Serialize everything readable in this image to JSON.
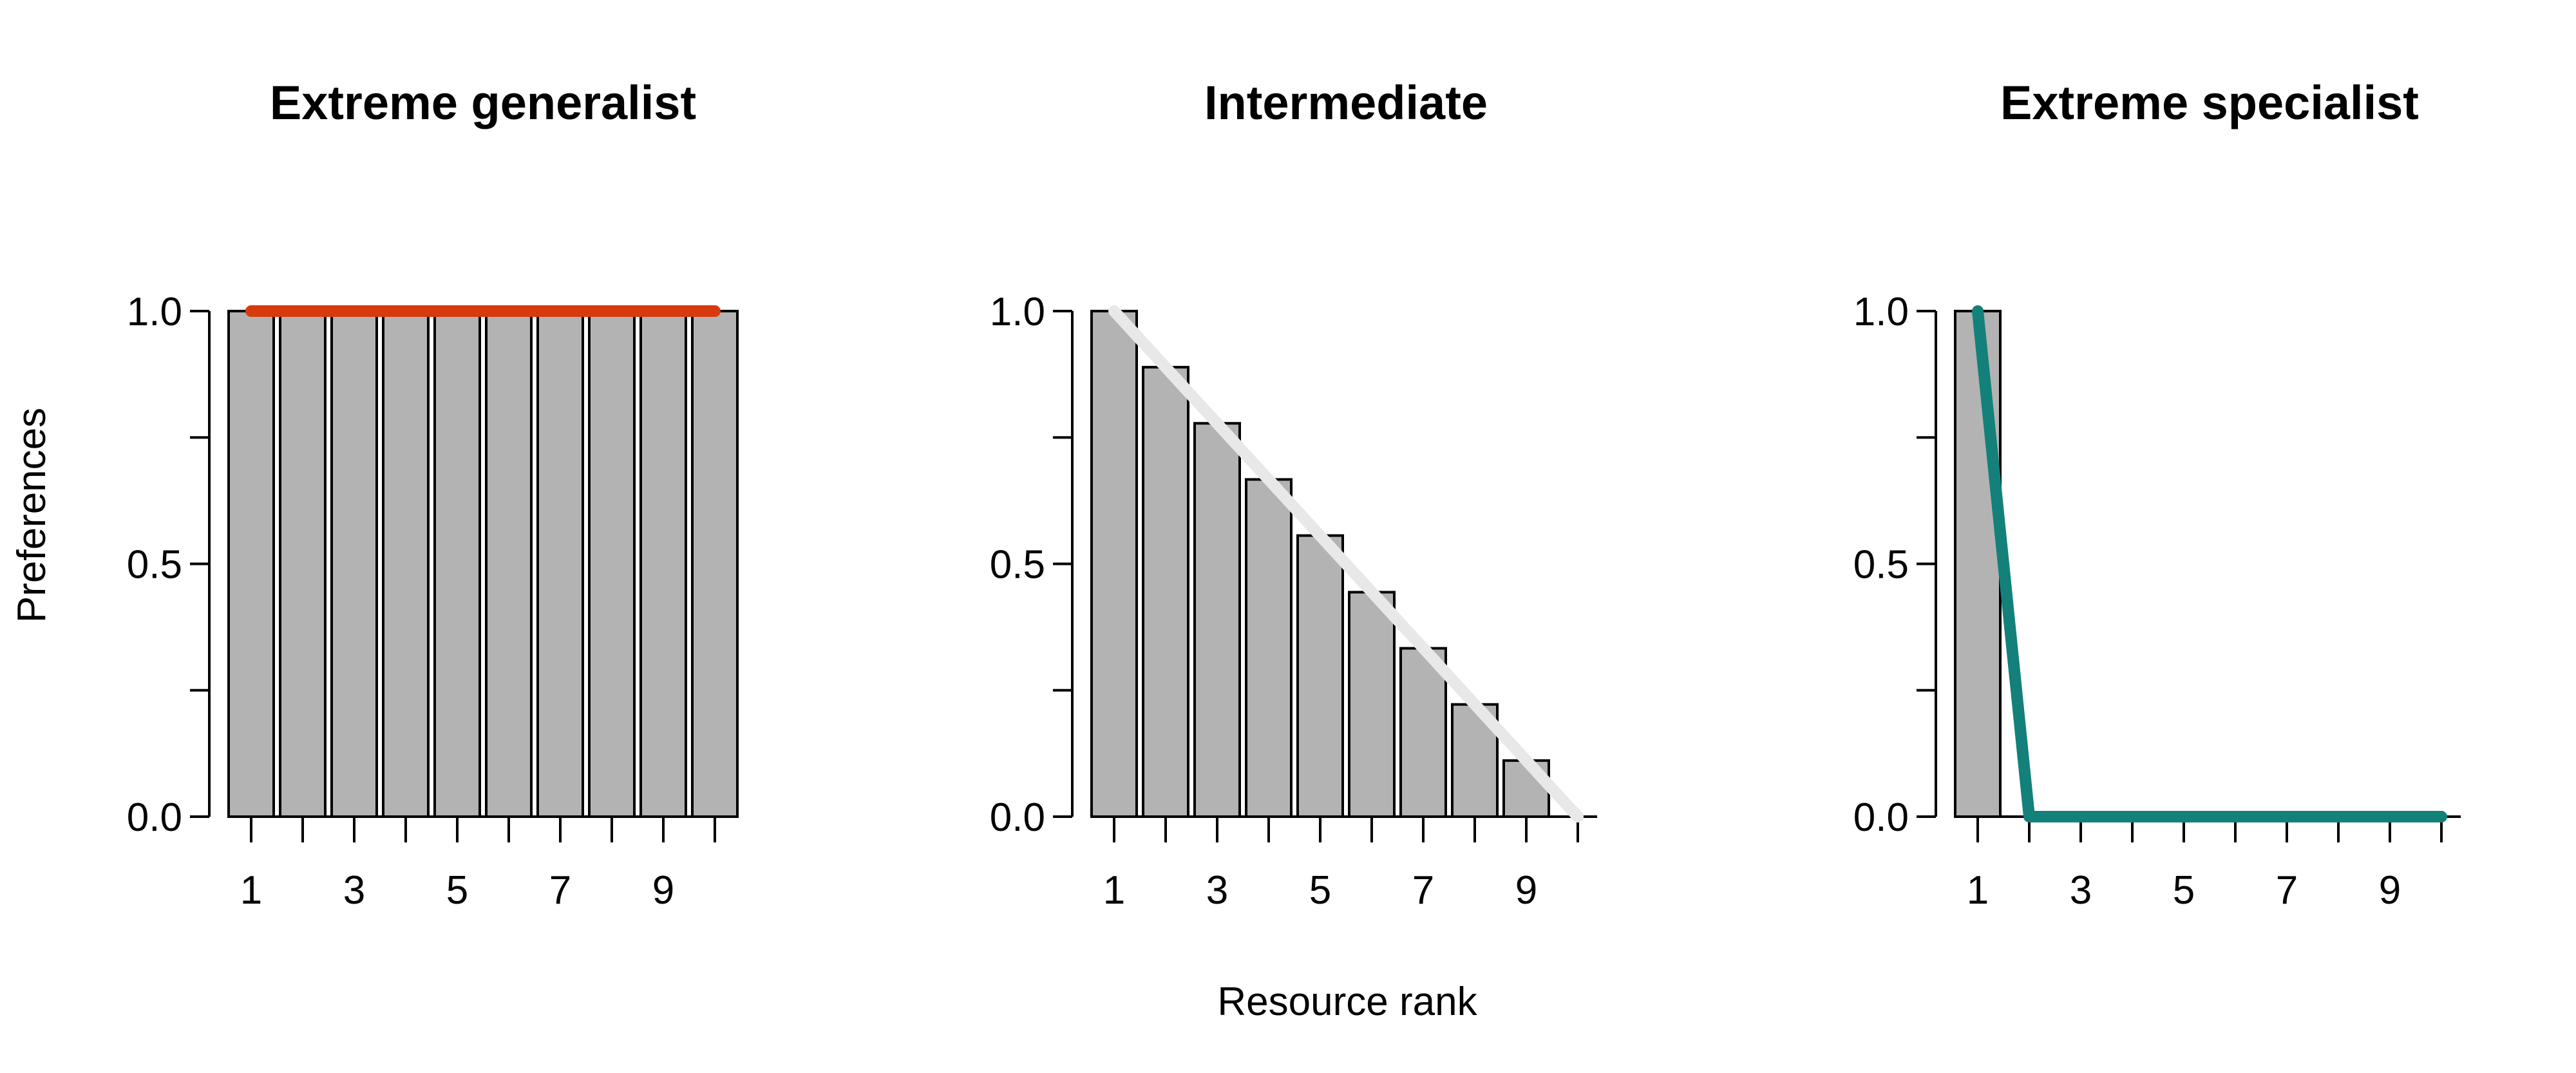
{
  "ylabel": "Preferences",
  "xlabel": "Resource rank",
  "colors": {
    "bar_fill": "#b3b3b3",
    "bar_edge": "#000000",
    "axis": "#000000"
  },
  "chart_data": [
    {
      "type": "bar",
      "title": "Extreme generalist",
      "categories": [
        1,
        2,
        3,
        4,
        5,
        6,
        7,
        8,
        9,
        10
      ],
      "values": [
        1.0,
        1.0,
        1.0,
        1.0,
        1.0,
        1.0,
        1.0,
        1.0,
        1.0,
        1.0
      ],
      "line": {
        "x": [
          1,
          2,
          3,
          4,
          5,
          6,
          7,
          8,
          9,
          10
        ],
        "y": [
          1.0,
          1.0,
          1.0,
          1.0,
          1.0,
          1.0,
          1.0,
          1.0,
          1.0,
          1.0
        ],
        "color": "#d63a0e"
      },
      "ylim": [
        0,
        1
      ],
      "yticks": [
        0.0,
        0.25,
        0.5,
        0.75,
        1.0
      ],
      "ytick_labels": [
        "0.0",
        "",
        "0.5",
        "",
        "1.0"
      ],
      "xticks": [
        1,
        2,
        3,
        4,
        5,
        6,
        7,
        8,
        9,
        10
      ],
      "xtick_labels": [
        "1",
        "",
        "3",
        "",
        "5",
        "",
        "7",
        "",
        "9",
        ""
      ]
    },
    {
      "type": "bar",
      "title": "Intermediate",
      "categories": [
        1,
        2,
        3,
        4,
        5,
        6,
        7,
        8,
        9,
        10
      ],
      "values": [
        1.0,
        0.889,
        0.778,
        0.667,
        0.556,
        0.444,
        0.333,
        0.222,
        0.111,
        0.0
      ],
      "line": {
        "x": [
          1,
          10
        ],
        "y": [
          1.0,
          0.0
        ],
        "color": "#e8e8e8"
      },
      "ylim": [
        0,
        1
      ],
      "yticks": [
        0.0,
        0.25,
        0.5,
        0.75,
        1.0
      ],
      "ytick_labels": [
        "0.0",
        "",
        "0.5",
        "",
        "1.0"
      ],
      "xticks": [
        1,
        2,
        3,
        4,
        5,
        6,
        7,
        8,
        9,
        10
      ],
      "xtick_labels": [
        "1",
        "",
        "3",
        "",
        "5",
        "",
        "7",
        "",
        "9",
        ""
      ]
    },
    {
      "type": "bar",
      "title": "Extreme specialist",
      "categories": [
        1,
        2,
        3,
        4,
        5,
        6,
        7,
        8,
        9,
        10
      ],
      "values": [
        1.0,
        0.0,
        0.0,
        0.0,
        0.0,
        0.0,
        0.0,
        0.0,
        0.0,
        0.0
      ],
      "line": {
        "x": [
          1,
          2,
          3,
          4,
          5,
          6,
          7,
          8,
          9,
          10
        ],
        "y": [
          1.0,
          0.0,
          0.0,
          0.0,
          0.0,
          0.0,
          0.0,
          0.0,
          0.0,
          0.0
        ],
        "color": "#13807a"
      },
      "ylim": [
        0,
        1
      ],
      "yticks": [
        0.0,
        0.25,
        0.5,
        0.75,
        1.0
      ],
      "ytick_labels": [
        "0.0",
        "",
        "0.5",
        "",
        "1.0"
      ],
      "xticks": [
        1,
        2,
        3,
        4,
        5,
        6,
        7,
        8,
        9,
        10
      ],
      "xtick_labels": [
        "1",
        "",
        "3",
        "",
        "5",
        "",
        "7",
        "",
        "9",
        ""
      ]
    }
  ]
}
